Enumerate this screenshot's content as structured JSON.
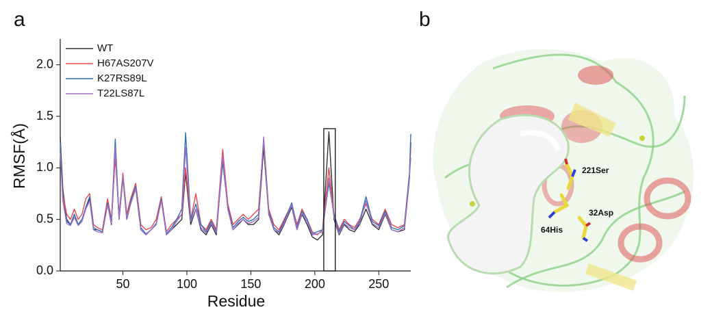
{
  "figure": {
    "panel_a": "a",
    "panel_b": "b",
    "residue_labels": [
      "221Ser",
      "64His",
      "32Asp"
    ]
  },
  "chart_data": {
    "type": "line",
    "xlabel": "Residue",
    "ylabel": "RMSF(Å)",
    "x": [
      1,
      3,
      6,
      9,
      12,
      15,
      18,
      21,
      24,
      27,
      30,
      34,
      38,
      41,
      44,
      47,
      50,
      53,
      56,
      60,
      64,
      68,
      72,
      76,
      80,
      84,
      88,
      92,
      96,
      99,
      103,
      107,
      111,
      115,
      119,
      123,
      128,
      132,
      136,
      140,
      144,
      148,
      152,
      156,
      160,
      164,
      168,
      172,
      176,
      182,
      186,
      190,
      194,
      198,
      202,
      206,
      211,
      215,
      219,
      223,
      227,
      231,
      235,
      240,
      245,
      250,
      255,
      260,
      265,
      270,
      274,
      275
    ],
    "series": [
      {
        "name": "WT",
        "color": "#333333",
        "values": [
          1.3,
          0.8,
          0.5,
          0.45,
          0.55,
          0.45,
          0.5,
          0.6,
          0.7,
          0.4,
          0.4,
          0.38,
          0.65,
          0.45,
          1.15,
          0.5,
          0.9,
          0.5,
          0.65,
          0.8,
          0.4,
          0.35,
          0.4,
          0.45,
          0.7,
          0.35,
          0.4,
          0.45,
          0.5,
          0.95,
          0.45,
          0.6,
          0.4,
          0.35,
          0.45,
          0.35,
          1.1,
          0.6,
          0.4,
          0.45,
          0.5,
          0.45,
          0.45,
          0.5,
          1.2,
          0.55,
          0.4,
          0.35,
          0.45,
          0.62,
          0.4,
          0.55,
          0.45,
          0.33,
          0.3,
          0.35,
          1.35,
          0.5,
          0.35,
          0.45,
          0.4,
          0.38,
          0.45,
          0.6,
          0.45,
          0.4,
          0.55,
          0.4,
          0.38,
          0.4,
          0.9,
          1.25
        ]
      },
      {
        "name": "H67AS207V",
        "color": "#e8474c",
        "values": [
          1.2,
          0.75,
          0.55,
          0.5,
          0.6,
          0.5,
          0.55,
          0.7,
          0.75,
          0.45,
          0.42,
          0.4,
          0.7,
          0.5,
          1.1,
          0.55,
          0.95,
          0.55,
          0.7,
          0.85,
          0.45,
          0.4,
          0.42,
          0.5,
          0.72,
          0.38,
          0.45,
          0.5,
          0.55,
          1.0,
          0.5,
          0.75,
          0.45,
          0.4,
          0.5,
          0.4,
          1.18,
          0.65,
          0.45,
          0.5,
          0.55,
          0.5,
          0.55,
          0.6,
          1.25,
          0.6,
          0.45,
          0.4,
          0.5,
          0.65,
          0.45,
          0.6,
          0.5,
          0.38,
          0.35,
          0.4,
          1.0,
          0.55,
          0.4,
          0.5,
          0.45,
          0.42,
          0.5,
          0.65,
          0.5,
          0.45,
          0.6,
          0.45,
          0.42,
          0.45,
          0.95,
          1.2
        ]
      },
      {
        "name": "K27RS89L",
        "color": "#2f6eb8",
        "values": [
          1.25,
          0.7,
          0.48,
          0.45,
          0.55,
          0.45,
          0.5,
          0.62,
          0.72,
          0.42,
          0.4,
          0.38,
          0.66,
          0.48,
          1.28,
          0.52,
          0.92,
          0.5,
          0.68,
          0.82,
          0.42,
          0.36,
          0.4,
          0.46,
          0.7,
          0.36,
          0.42,
          0.5,
          0.6,
          1.34,
          0.5,
          0.65,
          0.45,
          0.38,
          0.48,
          0.38,
          1.05,
          0.62,
          0.42,
          0.48,
          0.52,
          0.48,
          0.5,
          0.55,
          1.28,
          0.58,
          0.42,
          0.38,
          0.48,
          0.66,
          0.42,
          0.58,
          0.5,
          0.36,
          0.38,
          0.4,
          0.85,
          0.55,
          0.38,
          0.48,
          0.44,
          0.4,
          0.48,
          0.72,
          0.48,
          0.44,
          0.58,
          0.42,
          0.4,
          0.44,
          0.95,
          1.33
        ]
      },
      {
        "name": "T22LS87L",
        "color": "#a070c8",
        "values": [
          1.15,
          0.68,
          0.46,
          0.44,
          0.52,
          0.44,
          0.48,
          0.6,
          0.68,
          0.4,
          0.38,
          0.37,
          0.64,
          0.46,
          1.2,
          0.5,
          0.92,
          0.5,
          0.66,
          0.8,
          0.4,
          0.35,
          0.4,
          0.45,
          0.68,
          0.35,
          0.4,
          0.48,
          0.55,
          1.2,
          0.48,
          0.6,
          0.42,
          0.37,
          0.46,
          0.37,
          1.12,
          0.6,
          0.4,
          0.46,
          0.5,
          0.46,
          0.48,
          0.52,
          1.3,
          0.56,
          0.4,
          0.37,
          0.46,
          0.64,
          0.4,
          0.56,
          0.48,
          0.35,
          0.36,
          0.38,
          0.9,
          0.52,
          0.36,
          0.46,
          0.42,
          0.4,
          0.46,
          0.68,
          0.46,
          0.42,
          0.56,
          0.4,
          0.38,
          0.42,
          0.92,
          1.1
        ]
      }
    ],
    "xlim": [
      1,
      275
    ],
    "xticks": [
      50,
      100,
      150,
      200,
      250
    ],
    "ylim": [
      0,
      2.25
    ],
    "yticks": [
      {
        "value": 0,
        "label": "0.0"
      },
      {
        "value": 0.5,
        "label": "0.5"
      },
      {
        "value": 1,
        "label": "1.0"
      },
      {
        "value": 1.5,
        "label": "1.5"
      },
      {
        "value": 2,
        "label": "2.0"
      }
    ],
    "highlight_box": {
      "x": [
        207,
        216
      ],
      "y": [
        0,
        1.38
      ]
    },
    "legend": "upper left",
    "grid": false
  }
}
